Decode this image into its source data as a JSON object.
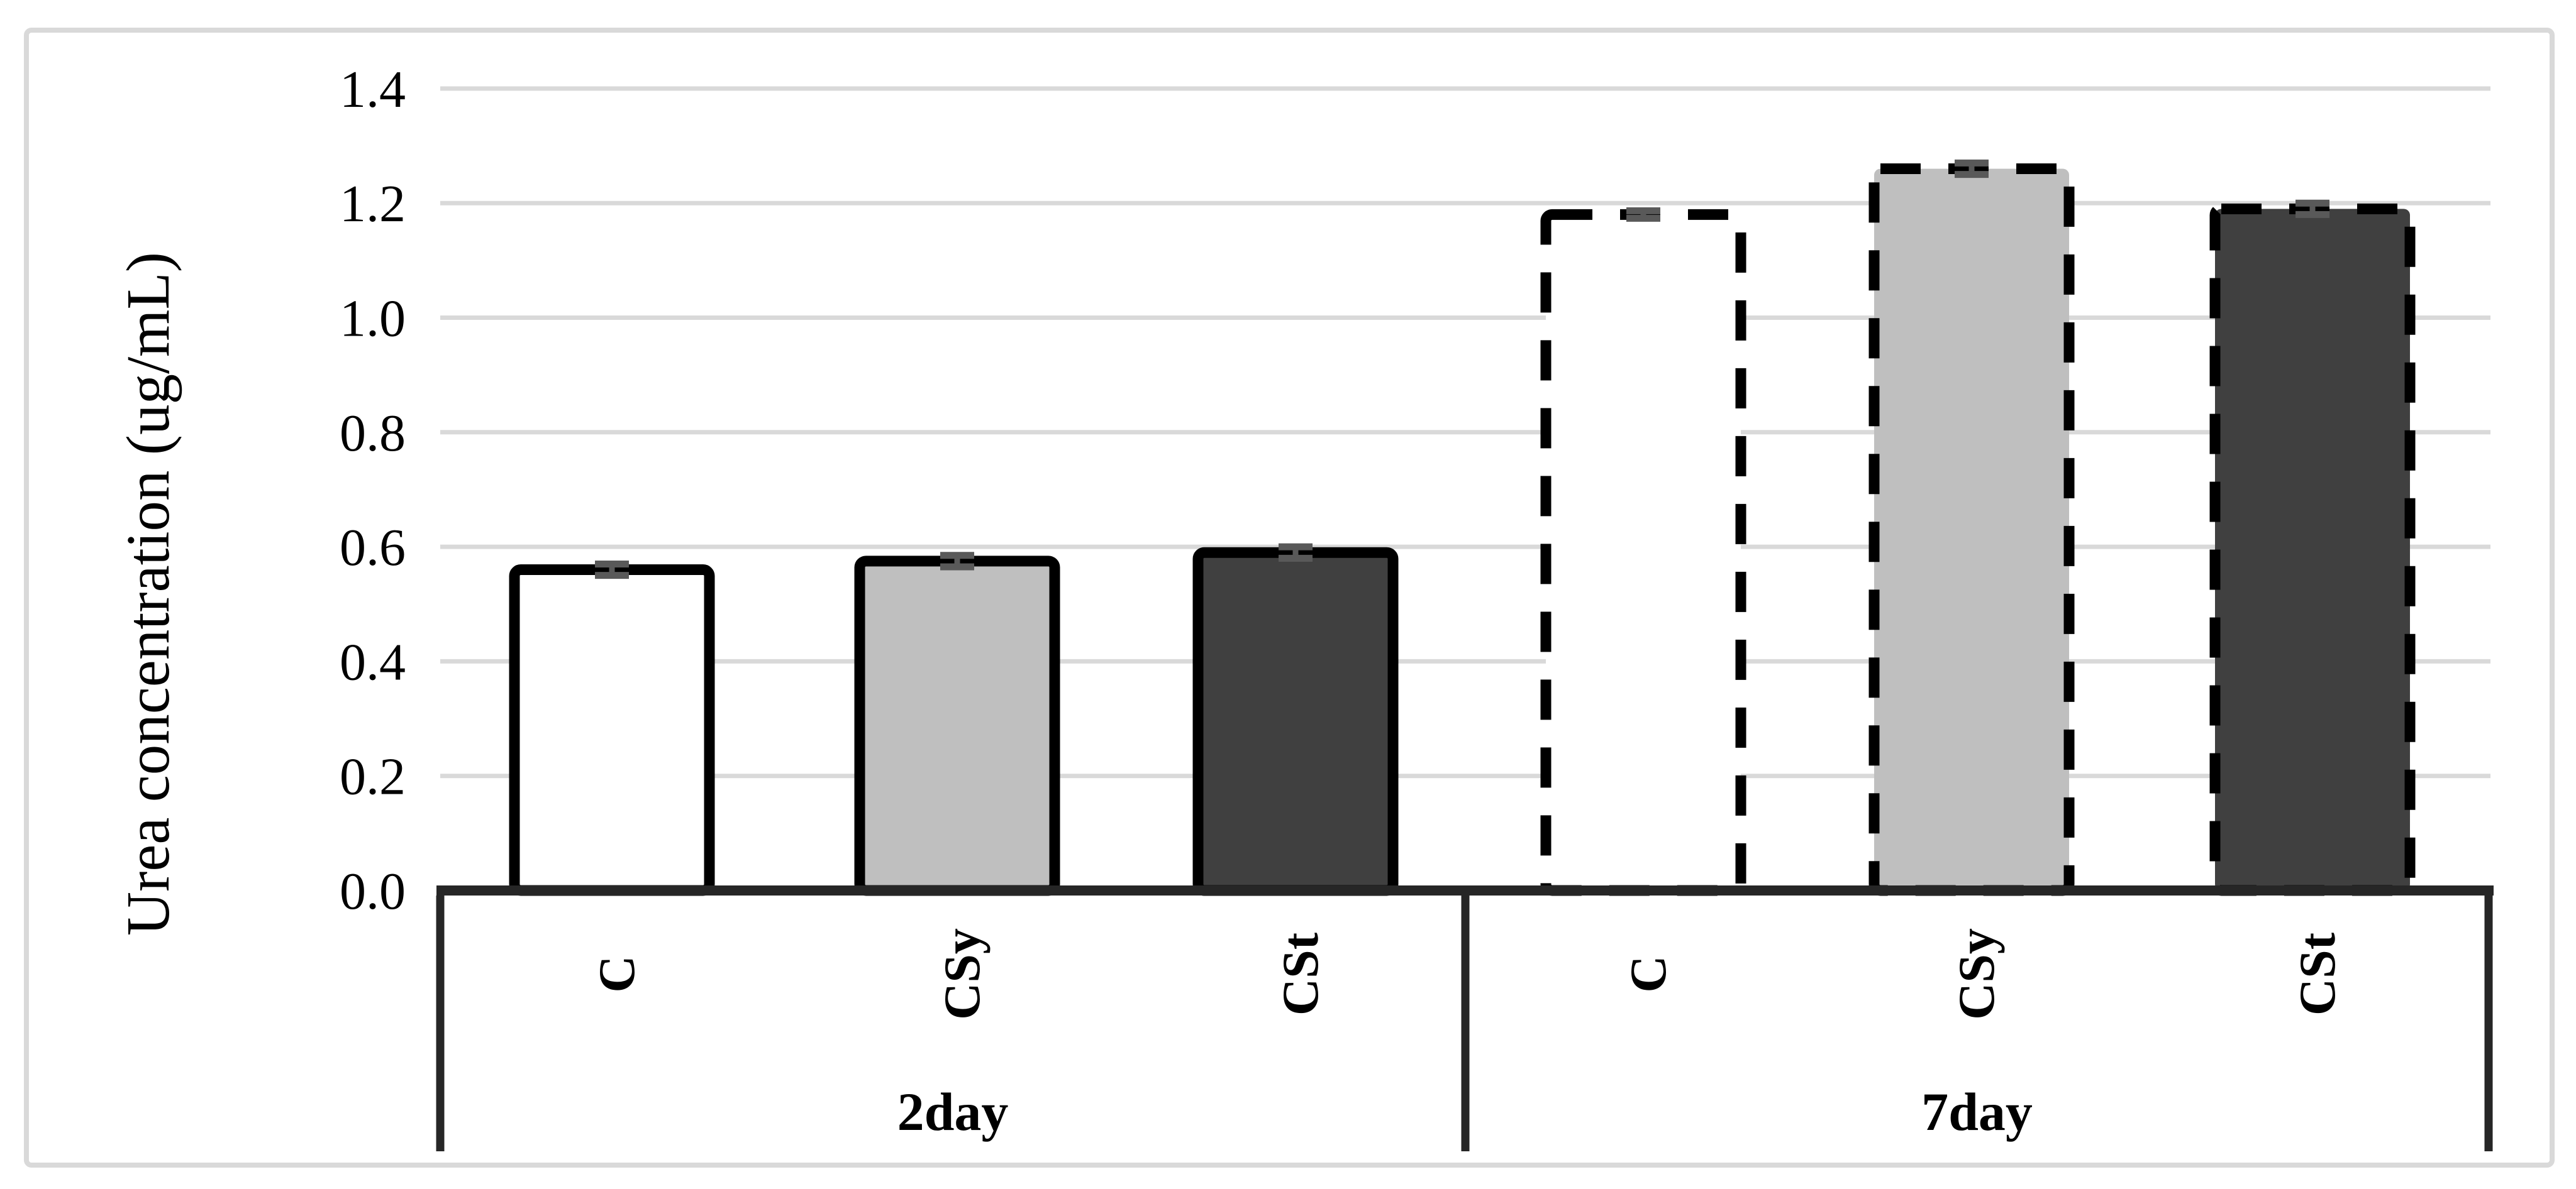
{
  "chart_data": {
    "type": "bar",
    "title": "",
    "ylabel": "Urea concentration (ug/mL)",
    "ylim": [
      0.0,
      1.4
    ],
    "ytick_step": 0.2,
    "ytick_labels": [
      "0.0",
      "0.2",
      "0.4",
      "0.6",
      "0.8",
      "1.0",
      "1.2",
      "1.4"
    ],
    "grid": true,
    "categories": [
      "C",
      "CSy",
      "CSt"
    ],
    "groups": [
      {
        "label": "2day",
        "border_style": "solid",
        "series": [
          {
            "name": "C",
            "value": 0.56,
            "error": 0.01
          },
          {
            "name": "CSy",
            "value": 0.575,
            "error": 0.01
          },
          {
            "name": "CSt",
            "value": 0.59,
            "error": 0.01
          }
        ]
      },
      {
        "label": "7day",
        "border_style": "dashed",
        "series": [
          {
            "name": "C",
            "value": 1.18,
            "error": 0.006
          },
          {
            "name": "CSy",
            "value": 1.26,
            "error": 0.01
          },
          {
            "name": "CSt",
            "value": 1.19,
            "error": 0.01
          }
        ]
      }
    ],
    "bar_fills": {
      "C": "#ffffff",
      "CSy": "#bfbfbf",
      "CSt": "#404040"
    },
    "colors": {
      "bar_border": "#000000",
      "axis_line": "#262626",
      "gridline": "#d9d9d9",
      "figure_border": "#d9d9d9",
      "error_bar": "#595959",
      "text": "#000000"
    },
    "legend": "none"
  }
}
